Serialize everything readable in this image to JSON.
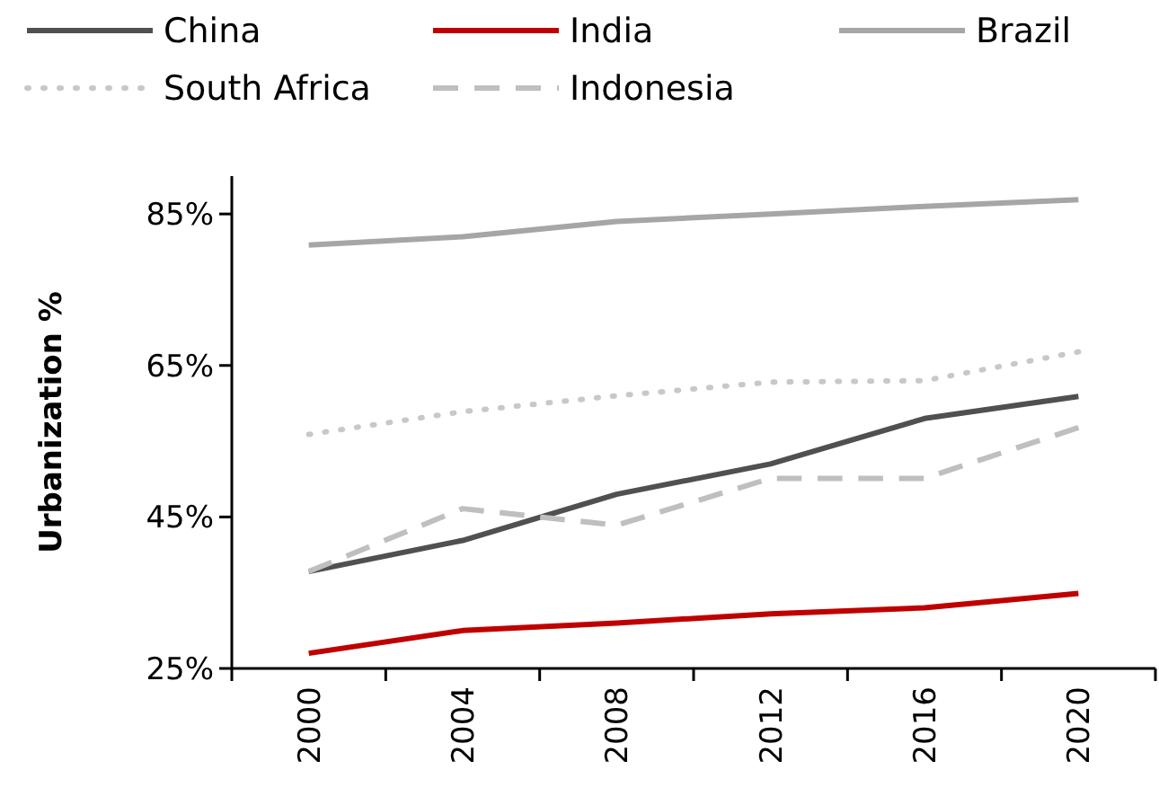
{
  "chart_data": {
    "type": "line",
    "ylabel": "Urbanization %",
    "categories": [
      "2000",
      "2004",
      "2008",
      "2012",
      "2016",
      "2020"
    ],
    "series": [
      {
        "name": "China",
        "color": "#505050",
        "line_style": "solid",
        "values": [
          37.8,
          41.9,
          48,
          52,
          58,
          60.9
        ]
      },
      {
        "name": "India",
        "color": "#c00000",
        "line_style": "solid",
        "values": [
          27,
          30,
          31,
          32.2,
          33,
          34.9
        ]
      },
      {
        "name": "Brazil",
        "color": "#a6a6a6",
        "line_style": "solid",
        "values": [
          80.9,
          82,
          84,
          85,
          86,
          86.9
        ]
      },
      {
        "name": "South Africa",
        "color": "#c8c8c8",
        "line_style": "dotted",
        "values": [
          55.9,
          58.9,
          61,
          62.8,
          63,
          66.8
        ]
      },
      {
        "name": "Indonesia",
        "color": "#bfbfbf",
        "line_style": "dashed",
        "values": [
          37.8,
          46.1,
          43.9,
          50.1,
          50.1,
          56.8
        ]
      }
    ],
    "ylim": [
      25,
      90
    ],
    "yticks": [
      {
        "value": 25,
        "label": "25%"
      },
      {
        "value": 45,
        "label": "45%"
      },
      {
        "value": 65,
        "label": "65%"
      },
      {
        "value": 85,
        "label": "85%"
      }
    ],
    "grid": false,
    "legend": "top",
    "marker": "none"
  }
}
